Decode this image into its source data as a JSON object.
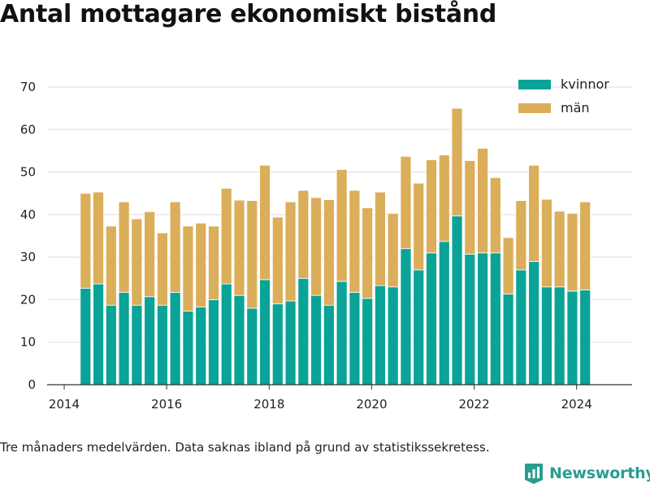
{
  "title": "Antal mottagare ekonomiskt bistånd",
  "caption": "Tre månaders medelvärden. Data saknas ibland på grund av statistikssekretess.",
  "brand": {
    "name": "Newsworthy",
    "icon": "newsworthy-logo-icon"
  },
  "colors": {
    "kvinnor": "#0aa398",
    "man": "#dbae5a",
    "grid": "#dddddd",
    "axis": "#333333",
    "text": "#222222"
  },
  "chart_data": {
    "type": "bar",
    "stacked": true,
    "title": "",
    "xlabel": "",
    "ylabel": "",
    "ylim": [
      0,
      70
    ],
    "yticks": [
      0,
      10,
      20,
      30,
      40,
      50,
      60,
      70
    ],
    "xlim": [
      "2013-09",
      "2025-02"
    ],
    "xticks": [
      "2014",
      "2016",
      "2018",
      "2020",
      "2022",
      "2024"
    ],
    "grid": true,
    "legend": "top-right",
    "x": [
      "2014-06",
      "2014-09",
      "2014-12",
      "2015-03",
      "2015-06",
      "2015-09",
      "2015-12",
      "2016-03",
      "2016-06",
      "2016-09",
      "2016-12",
      "2017-03",
      "2017-06",
      "2017-09",
      "2017-12",
      "2018-03",
      "2018-06",
      "2018-09",
      "2018-12",
      "2019-03",
      "2019-06",
      "2019-09",
      "2019-12",
      "2020-03",
      "2020-06",
      "2020-09",
      "2020-12",
      "2021-03",
      "2021-06",
      "2021-09",
      "2021-12",
      "2022-03",
      "2022-06",
      "2022-09",
      "2022-12",
      "2023-03",
      "2023-06",
      "2023-09",
      "2023-12",
      "2024-03"
    ],
    "series": [
      {
        "name": "kvinnor",
        "values": [
          22.7,
          23.7,
          18.7,
          21.7,
          18.7,
          20.7,
          18.7,
          21.7,
          17.3,
          18.3,
          20.0,
          23.7,
          21.0,
          18.0,
          24.7,
          19.0,
          19.7,
          25.0,
          21.0,
          18.7,
          24.3,
          21.7,
          20.3,
          23.3,
          23.0,
          32.0,
          27.0,
          31.0,
          33.7,
          39.7,
          30.7,
          31.0,
          31.0,
          21.3,
          27.0,
          29.0,
          23.0,
          23.0,
          22.0,
          22.3
        ]
      },
      {
        "name": "män",
        "values": [
          22.3,
          21.6,
          18.6,
          21.3,
          20.3,
          20.0,
          17.0,
          21.3,
          20.0,
          19.7,
          17.3,
          22.5,
          22.4,
          25.3,
          26.9,
          20.4,
          23.3,
          20.7,
          23.0,
          24.8,
          26.3,
          24.0,
          21.3,
          22.0,
          17.3,
          21.7,
          20.4,
          21.9,
          20.3,
          25.3,
          22.0,
          24.6,
          17.7,
          13.3,
          16.3,
          22.6,
          20.6,
          17.8,
          18.3,
          20.7
        ]
      }
    ]
  }
}
